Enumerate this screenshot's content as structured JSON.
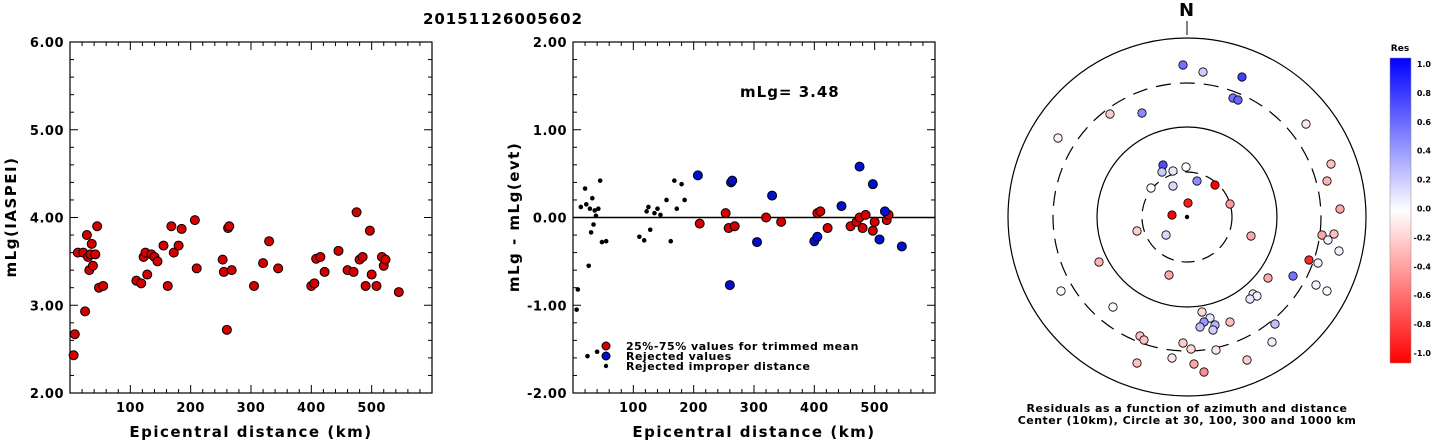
{
  "title": "20151126005602",
  "chart_data": [
    {
      "type": "scatter",
      "name": "left",
      "xlabel": "Epicentral distance (km)",
      "ylabel": "mLg(IASPEI)",
      "xlim": [
        0,
        600
      ],
      "ylim": [
        2.0,
        6.0
      ],
      "xticks": [
        "100",
        "200",
        "300",
        "400",
        "500"
      ],
      "yticks": [
        "2.00",
        "3.00",
        "4.00",
        "5.00",
        "6.00"
      ],
      "points": [
        [
          8,
          2.67
        ],
        [
          6,
          2.43
        ],
        [
          13,
          3.6
        ],
        [
          22,
          3.6
        ],
        [
          25,
          2.93
        ],
        [
          28,
          3.8
        ],
        [
          30,
          3.55
        ],
        [
          32,
          3.4
        ],
        [
          34,
          3.58
        ],
        [
          36,
          3.7
        ],
        [
          38,
          3.45
        ],
        [
          42,
          3.58
        ],
        [
          45,
          3.9
        ],
        [
          48,
          3.2
        ],
        [
          55,
          3.22
        ],
        [
          110,
          3.28
        ],
        [
          118,
          3.25
        ],
        [
          122,
          3.55
        ],
        [
          125,
          3.6
        ],
        [
          128,
          3.35
        ],
        [
          135,
          3.58
        ],
        [
          140,
          3.55
        ],
        [
          145,
          3.5
        ],
        [
          155,
          3.68
        ],
        [
          162,
          3.22
        ],
        [
          168,
          3.9
        ],
        [
          172,
          3.6
        ],
        [
          180,
          3.68
        ],
        [
          185,
          3.87
        ],
        [
          207,
          3.97
        ],
        [
          210,
          3.42
        ],
        [
          253,
          3.52
        ],
        [
          255,
          3.38
        ],
        [
          260,
          2.72
        ],
        [
          262,
          3.88
        ],
        [
          264,
          3.9
        ],
        [
          268,
          3.4
        ],
        [
          305,
          3.22
        ],
        [
          320,
          3.48
        ],
        [
          330,
          3.73
        ],
        [
          345,
          3.42
        ],
        [
          400,
          3.22
        ],
        [
          405,
          3.25
        ],
        [
          408,
          3.53
        ],
        [
          415,
          3.55
        ],
        [
          422,
          3.38
        ],
        [
          445,
          3.62
        ],
        [
          460,
          3.4
        ],
        [
          470,
          3.38
        ],
        [
          475,
          4.06
        ],
        [
          480,
          3.52
        ],
        [
          485,
          3.55
        ],
        [
          490,
          3.22
        ],
        [
          497,
          3.85
        ],
        [
          500,
          3.35
        ],
        [
          508,
          3.22
        ],
        [
          517,
          3.55
        ],
        [
          520,
          3.45
        ],
        [
          523,
          3.52
        ],
        [
          545,
          3.15
        ]
      ]
    },
    {
      "type": "scatter",
      "name": "middle",
      "xlabel": "Epicentral distance (km)",
      "ylabel": "mLg - mLg(evt)",
      "xlim": [
        0,
        600
      ],
      "ylim": [
        -2.0,
        2.0
      ],
      "xticks": [
        "100",
        "200",
        "300",
        "400",
        "500"
      ],
      "yticks": [
        "-2.00",
        "-1.00",
        "0.00",
        "1.00",
        "2.00"
      ],
      "annotation": "mLg= 3.48",
      "reference_line": 0,
      "trimmed": [
        [
          210,
          -0.07
        ],
        [
          253,
          0.05
        ],
        [
          258,
          -0.12
        ],
        [
          268,
          -0.1
        ],
        [
          320,
          0.0
        ],
        [
          345,
          -0.05
        ],
        [
          405,
          0.05
        ],
        [
          410,
          0.07
        ],
        [
          422,
          -0.12
        ],
        [
          460,
          -0.1
        ],
        [
          470,
          -0.05
        ],
        [
          475,
          0.0
        ],
        [
          480,
          -0.12
        ],
        [
          485,
          0.03
        ],
        [
          497,
          -0.15
        ],
        [
          500,
          -0.05
        ],
        [
          520,
          -0.03
        ],
        [
          523,
          0.03
        ]
      ],
      "rejected": [
        [
          207,
          0.48
        ],
        [
          260,
          -0.77
        ],
        [
          262,
          0.4
        ],
        [
          264,
          0.42
        ],
        [
          305,
          -0.28
        ],
        [
          330,
          0.25
        ],
        [
          400,
          -0.27
        ],
        [
          405,
          -0.22
        ],
        [
          445,
          0.13
        ],
        [
          475,
          0.58
        ],
        [
          497,
          0.38
        ],
        [
          508,
          -0.25
        ],
        [
          517,
          0.07
        ],
        [
          545,
          -0.33
        ]
      ],
      "improper": [
        [
          6,
          -1.05
        ],
        [
          8,
          -0.82
        ],
        [
          13,
          0.12
        ],
        [
          20,
          0.33
        ],
        [
          22,
          0.15
        ],
        [
          24,
          -1.58
        ],
        [
          26,
          -0.55
        ],
        [
          28,
          0.1
        ],
        [
          30,
          -0.17
        ],
        [
          32,
          0.22
        ],
        [
          34,
          -0.08
        ],
        [
          36,
          0.08
        ],
        [
          38,
          0.02
        ],
        [
          40,
          -1.53
        ],
        [
          42,
          0.1
        ],
        [
          45,
          0.42
        ],
        [
          48,
          -0.28
        ],
        [
          55,
          -0.27
        ],
        [
          110,
          -0.22
        ],
        [
          118,
          -0.26
        ],
        [
          122,
          0.07
        ],
        [
          125,
          0.12
        ],
        [
          128,
          -0.14
        ],
        [
          135,
          0.05
        ],
        [
          140,
          0.1
        ],
        [
          145,
          0.03
        ],
        [
          155,
          0.2
        ],
        [
          162,
          -0.27
        ],
        [
          168,
          0.42
        ],
        [
          172,
          0.1
        ],
        [
          180,
          0.38
        ],
        [
          185,
          0.2
        ]
      ],
      "legend": [
        {
          "label": "25%-75% values for trimmed mean",
          "color": "#d40000"
        },
        {
          "label": "Rejected values",
          "color": "#0010d0"
        },
        {
          "label": "Rejected improper distance",
          "color": "#000000"
        }
      ]
    }
  ],
  "polar": {
    "north_label": "N",
    "caption_line1": "Residuals as a function of azimuth and distance",
    "caption_line2": "Center (10km), Circle at 30, 100, 300 and 1000 km",
    "points": [
      [
        1203,
        72,
        0.2
      ],
      [
        1183,
        65,
        0.55
      ],
      [
        1242,
        77,
        0.75
      ],
      [
        1233,
        98,
        0.55
      ],
      [
        1238,
        100,
        0.6
      ],
      [
        1110,
        114,
        -0.2
      ],
      [
        1142,
        113,
        0.45
      ],
      [
        1306,
        124,
        -0.1
      ],
      [
        1058,
        138,
        -0.05
      ],
      [
        1331,
        164,
        -0.25
      ],
      [
        1163,
        165,
        0.7
      ],
      [
        1162,
        172,
        0.2
      ],
      [
        1186,
        167,
        0.0
      ],
      [
        1173,
        171,
        0.1
      ],
      [
        1197,
        181,
        0.45
      ],
      [
        1327,
        181,
        -0.3
      ],
      [
        1215,
        185,
        -1.0
      ],
      [
        1340,
        209,
        -0.35
      ],
      [
        1151,
        188,
        0.0
      ],
      [
        1173,
        186,
        0.15
      ],
      [
        1188,
        203,
        -0.9
      ],
      [
        1172,
        215,
        -1.0
      ],
      [
        1230,
        204,
        -0.4
      ],
      [
        1137,
        231,
        -0.2
      ],
      [
        1251,
        236,
        -0.35
      ],
      [
        1166,
        235,
        0.15
      ],
      [
        1322,
        235,
        -0.35
      ],
      [
        1328,
        240,
        0.05
      ],
      [
        1334,
        234,
        -0.25
      ],
      [
        1339,
        251,
        0.05
      ],
      [
        1099,
        262,
        -0.3
      ],
      [
        1318,
        263,
        0.05
      ],
      [
        1169,
        275,
        -0.35
      ],
      [
        1268,
        278,
        -0.35
      ],
      [
        1293,
        276,
        0.55
      ],
      [
        1309,
        260,
        -0.85
      ],
      [
        1316,
        285,
        0.05
      ],
      [
        1327,
        291,
        0.0
      ],
      [
        1061,
        291,
        0.0
      ],
      [
        1253,
        294,
        0.1
      ],
      [
        1257,
        296,
        0.05
      ],
      [
        1250,
        299,
        0.1
      ],
      [
        1202,
        312,
        -0.15
      ],
      [
        1210,
        318,
        0.1
      ],
      [
        1215,
        325,
        0.3
      ],
      [
        1204,
        322,
        0.4
      ],
      [
        1200,
        327,
        0.25
      ],
      [
        1213,
        330,
        0.2
      ],
      [
        1230,
        322,
        -0.25
      ],
      [
        1275,
        324,
        0.25
      ],
      [
        1113,
        307,
        0.0
      ],
      [
        1140,
        336,
        -0.25
      ],
      [
        1144,
        340,
        -0.25
      ],
      [
        1183,
        343,
        -0.2
      ],
      [
        1216,
        350,
        -0.1
      ],
      [
        1191,
        349,
        -0.15
      ],
      [
        1172,
        358,
        -0.1
      ],
      [
        1272,
        342,
        0.05
      ],
      [
        1137,
        363,
        -0.25
      ],
      [
        1194,
        364,
        -0.35
      ],
      [
        1204,
        372,
        -0.45
      ],
      [
        1247,
        360,
        -0.2
      ]
    ],
    "colorbar_title": "Res",
    "colorbar_ticks": [
      "1.0",
      "0.8",
      "0.6",
      "0.4",
      "0.2",
      "0.0",
      "-0.2",
      "-0.4",
      "-0.6",
      "-0.8",
      "-1.0"
    ]
  }
}
